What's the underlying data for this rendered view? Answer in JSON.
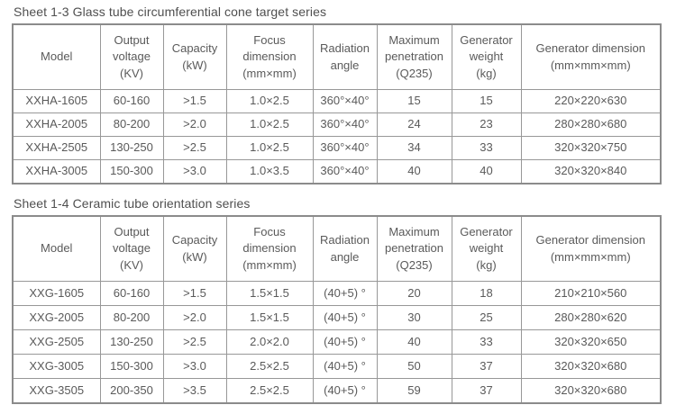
{
  "page": {
    "background": "#ffffff",
    "text_color": "#5a5a5a",
    "border_color": "#8b8b8b"
  },
  "tables": [
    {
      "title": "Sheet 1-3 Glass tube circumferential cone target series",
      "headers": [
        "Model",
        "Output\nvoltage\n(KV)",
        "Capacity\n(kW)",
        "Focus\ndimension\n(mm×mm)",
        "Radiation\nangle",
        "Maximum\npenetration\n(Q235)",
        "Generator\nweight\n(kg)",
        "Generator dimension\n(mm×mm×mm)"
      ],
      "rows": [
        [
          "XXHA-1605",
          "60-160",
          ">1.5",
          "1.0×2.5",
          "360°×40°",
          "15",
          "15",
          "220×220×630"
        ],
        [
          "XXHA-2005",
          "80-200",
          ">2.0",
          "1.0×2.5",
          "360°×40°",
          "24",
          "23",
          "280×280×680"
        ],
        [
          "XXHA-2505",
          "130-250",
          ">2.5",
          "1.0×2.5",
          "360°×40°",
          "34",
          "33",
          "320×320×750"
        ],
        [
          "XXHA-3005",
          "150-300",
          ">3.0",
          "1.0×3.5",
          "360°×40°",
          "40",
          "40",
          "320×320×840"
        ]
      ]
    },
    {
      "title": "Sheet 1-4 Ceramic tube orientation series",
      "headers": [
        "Model",
        "Output\nvoltage\n(KV)",
        "Capacity\n(kW)",
        "Focus\ndimension\n(mm×mm)",
        "Radiation\nangle",
        "Maximum\npenetration\n(Q235)",
        "Generator\nweight\n(kg)",
        "Generator dimension\n(mm×mm×mm)"
      ],
      "rows": [
        [
          "XXG-1605",
          "60-160",
          ">1.5",
          "1.5×1.5",
          "(40+5) °",
          "20",
          "18",
          "210×210×560"
        ],
        [
          "XXG-2005",
          "80-200",
          ">2.0",
          "1.5×1.5",
          "(40+5) °",
          "30",
          "25",
          "280×280×620"
        ],
        [
          "XXG-2505",
          "130-250",
          ">2.5",
          "2.0×2.0",
          "(40+5) °",
          "40",
          "33",
          "320×320×650"
        ],
        [
          "XXG-3005",
          "150-300",
          ">3.0",
          "2.5×2.5",
          "(40+5) °",
          "50",
          "37",
          "320×320×680"
        ],
        [
          "XXG-3505",
          "200-350",
          ">3.5",
          "2.5×2.5",
          "(40+5) °",
          "59",
          "37",
          "320×320×680"
        ]
      ]
    }
  ]
}
